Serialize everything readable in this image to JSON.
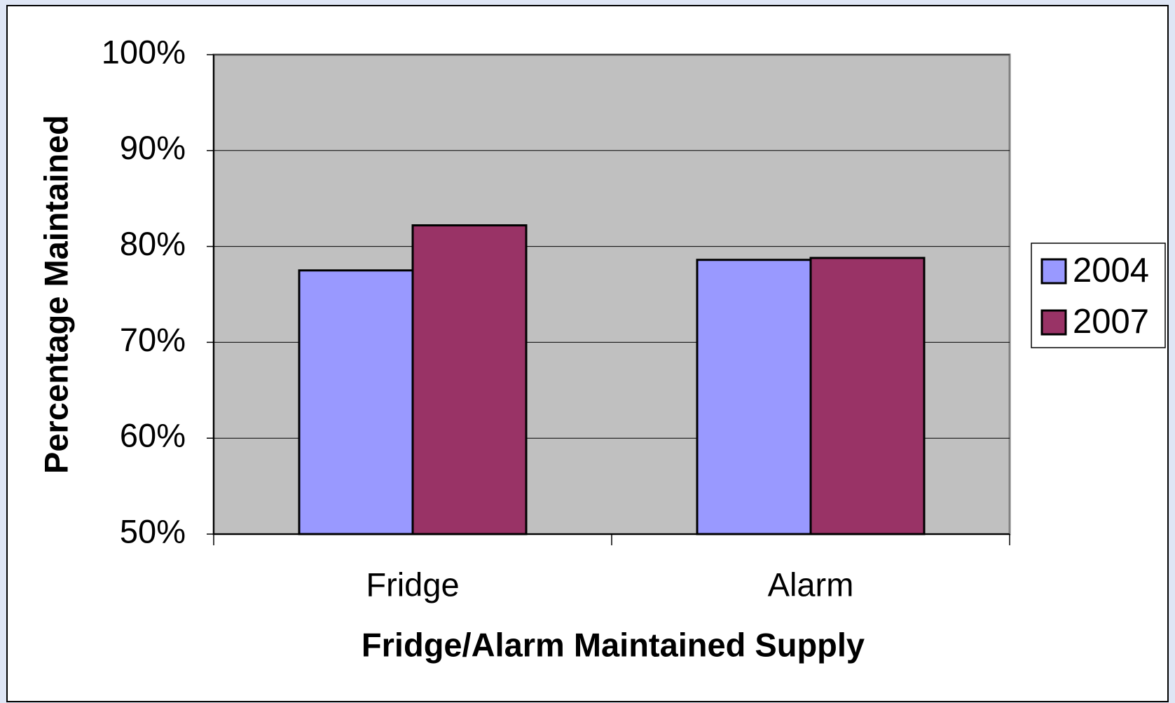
{
  "chart_data": {
    "type": "bar",
    "categories": [
      "Fridge",
      "Alarm"
    ],
    "series": [
      {
        "name": "2004",
        "color": "#9999ff",
        "values": [
          77.5,
          78.6
        ]
      },
      {
        "name": "2007",
        "color": "#993366",
        "values": [
          82.2,
          78.8
        ]
      }
    ],
    "x_label": "Fridge/Alarm Maintained Supply",
    "y_label": "Percentage Maintained",
    "ylim": [
      50,
      100
    ],
    "yticks": [
      {
        "value": 50,
        "label": "50%"
      },
      {
        "value": 60,
        "label": "60%"
      },
      {
        "value": 70,
        "label": "70%"
      },
      {
        "value": 80,
        "label": "80%"
      },
      {
        "value": 90,
        "label": "90%"
      },
      {
        "value": 100,
        "label": "100%"
      }
    ],
    "grid": true,
    "legend": "right"
  }
}
